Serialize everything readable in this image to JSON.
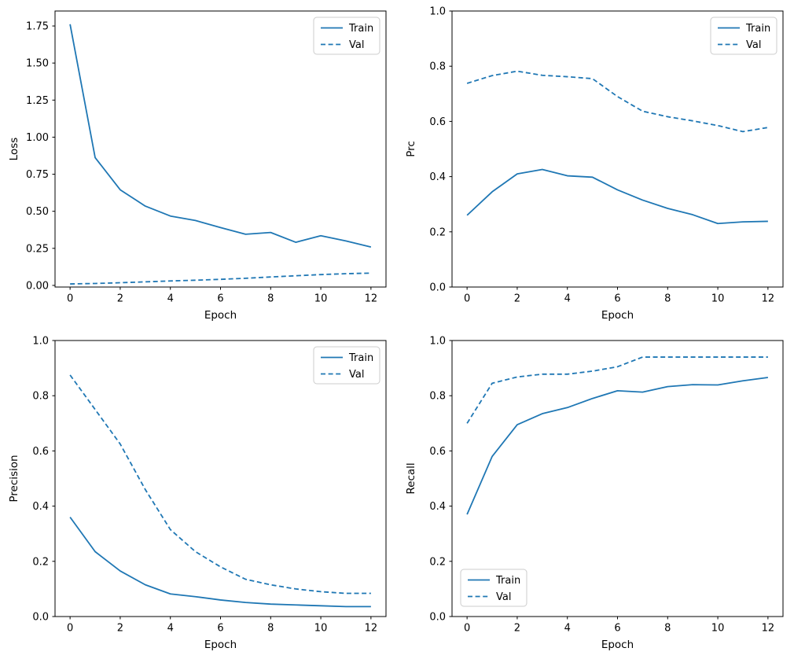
{
  "figure": {
    "background": "#ffffff",
    "line_color": "#1f77b4",
    "axis_color": "#000000",
    "legend_border_color": "#cccccc",
    "legend_background": "#ffffff"
  },
  "chart_data": [
    {
      "id": "loss",
      "type": "line",
      "title": "",
      "xlabel": "Epoch",
      "ylabel": "Loss",
      "x": [
        0,
        1,
        2,
        3,
        4,
        5,
        6,
        7,
        8,
        9,
        10,
        11,
        12
      ],
      "series": [
        {
          "name": "Train",
          "style": "solid",
          "values": [
            1.762,
            0.862,
            0.645,
            0.535,
            0.468,
            0.438,
            0.39,
            0.345,
            0.357,
            0.291,
            0.335,
            0.3,
            0.259
          ]
        },
        {
          "name": "Val",
          "style": "dashed",
          "values": [
            0.01,
            0.013,
            0.018,
            0.024,
            0.03,
            0.035,
            0.041,
            0.048,
            0.057,
            0.065,
            0.073,
            0.079,
            0.083
          ]
        }
      ],
      "xlim": [
        -0.6,
        12.6
      ],
      "ylim": [
        -0.011,
        1.851
      ],
      "xticks": [
        0,
        2,
        4,
        6,
        8,
        10,
        12
      ],
      "xtick_labels": [
        "0",
        "2",
        "4",
        "6",
        "8",
        "10",
        "12"
      ],
      "yticks": [
        0,
        0.25,
        0.5,
        0.75,
        1.0,
        1.25,
        1.5,
        1.75
      ],
      "ytick_labels": [
        "0.00",
        "0.25",
        "0.50",
        "0.75",
        "1.00",
        "1.25",
        "1.50",
        "1.75"
      ],
      "legend_position": "upper-right",
      "grid": false,
      "color": "#1f77b4"
    },
    {
      "id": "prc",
      "type": "line",
      "title": "",
      "xlabel": "Epoch",
      "ylabel": "Prc",
      "x": [
        0,
        1,
        2,
        3,
        4,
        5,
        6,
        7,
        8,
        9,
        10,
        11,
        12
      ],
      "series": [
        {
          "name": "Train",
          "style": "solid",
          "values": [
            0.26,
            0.345,
            0.41,
            0.426,
            0.403,
            0.398,
            0.352,
            0.315,
            0.285,
            0.262,
            0.23,
            0.236,
            0.238
          ]
        },
        {
          "name": "Val",
          "style": "dashed",
          "values": [
            0.738,
            0.766,
            0.782,
            0.767,
            0.762,
            0.755,
            0.69,
            0.637,
            0.617,
            0.602,
            0.585,
            0.563,
            0.578
          ]
        }
      ],
      "xlim": [
        -0.6,
        12.6
      ],
      "ylim": [
        0,
        1
      ],
      "xticks": [
        0,
        2,
        4,
        6,
        8,
        10,
        12
      ],
      "xtick_labels": [
        "0",
        "2",
        "4",
        "6",
        "8",
        "10",
        "12"
      ],
      "yticks": [
        0,
        0.2,
        0.4,
        0.6,
        0.8,
        1.0
      ],
      "ytick_labels": [
        "0.0",
        "0.2",
        "0.4",
        "0.6",
        "0.8",
        "1.0"
      ],
      "legend_position": "upper-right",
      "grid": false,
      "color": "#1f77b4"
    },
    {
      "id": "precision",
      "type": "line",
      "title": "",
      "xlabel": "Epoch",
      "ylabel": "Precision",
      "x": [
        0,
        1,
        2,
        3,
        4,
        5,
        6,
        7,
        8,
        9,
        10,
        11,
        12
      ],
      "series": [
        {
          "name": "Train",
          "style": "solid",
          "values": [
            0.36,
            0.235,
            0.165,
            0.115,
            0.082,
            0.072,
            0.06,
            0.051,
            0.045,
            0.042,
            0.039,
            0.036,
            0.036
          ]
        },
        {
          "name": "Val",
          "style": "dashed",
          "values": [
            0.875,
            0.75,
            0.625,
            0.46,
            0.315,
            0.235,
            0.18,
            0.135,
            0.115,
            0.1,
            0.09,
            0.084,
            0.084
          ]
        }
      ],
      "xlim": [
        -0.6,
        12.6
      ],
      "ylim": [
        0,
        1
      ],
      "xticks": [
        0,
        2,
        4,
        6,
        8,
        10,
        12
      ],
      "xtick_labels": [
        "0",
        "2",
        "4",
        "6",
        "8",
        "10",
        "12"
      ],
      "yticks": [
        0,
        0.2,
        0.4,
        0.6,
        0.8,
        1.0
      ],
      "ytick_labels": [
        "0.0",
        "0.2",
        "0.4",
        "0.6",
        "0.8",
        "1.0"
      ],
      "legend_position": "upper-right",
      "grid": false,
      "color": "#1f77b4"
    },
    {
      "id": "recall",
      "type": "line",
      "title": "",
      "xlabel": "Epoch",
      "ylabel": "Recall",
      "x": [
        0,
        1,
        2,
        3,
        4,
        5,
        6,
        7,
        8,
        9,
        10,
        11,
        12
      ],
      "series": [
        {
          "name": "Train",
          "style": "solid",
          "values": [
            0.37,
            0.58,
            0.695,
            0.735,
            0.757,
            0.79,
            0.818,
            0.813,
            0.833,
            0.84,
            0.839,
            0.854,
            0.866
          ]
        },
        {
          "name": "Val",
          "style": "dashed",
          "values": [
            0.7,
            0.845,
            0.868,
            0.878,
            0.878,
            0.889,
            0.905,
            0.94,
            0.94,
            0.94,
            0.94,
            0.94,
            0.94
          ]
        }
      ],
      "xlim": [
        -0.6,
        12.6
      ],
      "ylim": [
        0,
        1
      ],
      "xticks": [
        0,
        2,
        4,
        6,
        8,
        10,
        12
      ],
      "xtick_labels": [
        "0",
        "2",
        "4",
        "6",
        "8",
        "10",
        "12"
      ],
      "yticks": [
        0,
        0.2,
        0.4,
        0.6,
        0.8,
        1.0
      ],
      "ytick_labels": [
        "0.0",
        "0.2",
        "0.4",
        "0.6",
        "0.8",
        "1.0"
      ],
      "legend_position": "lower-left",
      "grid": false,
      "color": "#1f77b4"
    }
  ]
}
